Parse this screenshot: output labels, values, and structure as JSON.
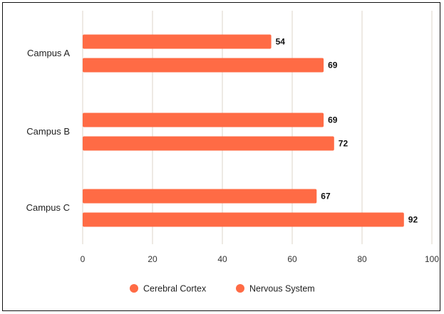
{
  "chart_data": {
    "type": "bar",
    "orientation": "horizontal",
    "categories": [
      "Campus A",
      "Campus B",
      "Campus C"
    ],
    "series": [
      {
        "name": "Cerebral Cortex",
        "values": [
          54,
          69,
          67
        ],
        "color": "#ff6b45"
      },
      {
        "name": "Nervous System",
        "values": [
          69,
          72,
          92
        ],
        "color": "#ff6b45"
      }
    ],
    "x_ticks": [
      "0",
      "20",
      "40",
      "60",
      "80",
      "100"
    ],
    "xlim": [
      0,
      100
    ],
    "grid": true,
    "legend_position": "bottom"
  }
}
